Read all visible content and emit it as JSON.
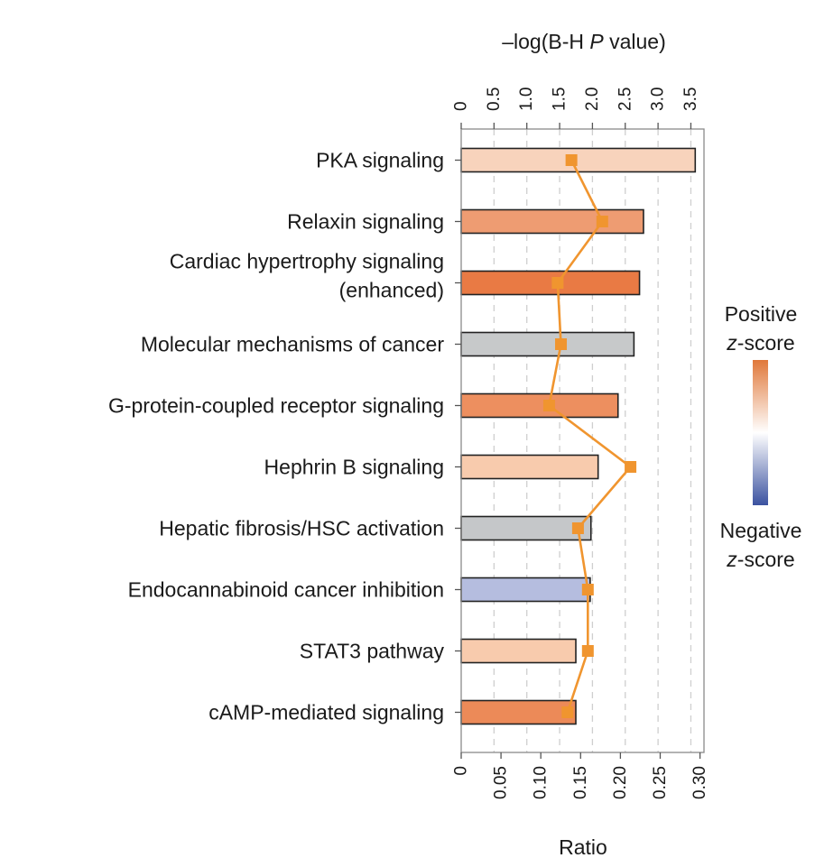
{
  "chart_data": {
    "type": "bar",
    "categories": [
      [
        "PKA signaling"
      ],
      [
        "Relaxin signaling"
      ],
      [
        "Cardiac hypertrophy signaling",
        "(enhanced)"
      ],
      [
        "Molecular mechanisms of cancer"
      ],
      [
        "G-protein-coupled receptor signaling"
      ],
      [
        "Hephrin B signaling"
      ],
      [
        "Hepatic fibrosis/HSC activation"
      ],
      [
        "Endocannabinoid cancer inhibition"
      ],
      [
        "STAT3 pathway"
      ],
      [
        "cAMP-mediated signaling"
      ]
    ],
    "series": [
      {
        "name": "Ratio",
        "axis": "bottom",
        "values": [
          0.294,
          0.229,
          0.224,
          0.217,
          0.197,
          0.172,
          0.163,
          0.162,
          0.144,
          0.144
        ],
        "colors": [
          "#f8d3bc",
          "#ee9c72",
          "#e97a44",
          "#c7c9ca",
          "#ed8f5f",
          "#f8cbad",
          "#c5c7c9",
          "#b5bddf",
          "#f8cbad",
          "#ec8a58"
        ]
      },
      {
        "name": "-log(B-H P value)",
        "axis": "top",
        "values": [
          1.68,
          2.15,
          1.47,
          1.52,
          1.34,
          2.58,
          1.78,
          1.93,
          1.93,
          1.62
        ],
        "color": "#f0952f"
      }
    ],
    "top_axis": {
      "label_prefix": "–log(B-H ",
      "label_italic": "P",
      "label_suffix": " value)",
      "ticks": [
        "0",
        "0.5",
        "1.0",
        "1.5",
        "2.0",
        "2.5",
        "3.0",
        "3.5"
      ],
      "tick_values": [
        0,
        0.5,
        1.0,
        1.5,
        2.0,
        2.5,
        3.0,
        3.5
      ],
      "range": [
        0,
        3.7
      ]
    },
    "bottom_axis": {
      "label": "Ratio",
      "ticks": [
        "0",
        "0.05",
        "0.10",
        "0.15",
        "0.20",
        "0.25",
        "0.30"
      ],
      "tick_values": [
        0,
        0.05,
        0.1,
        0.15,
        0.2,
        0.25,
        0.3
      ],
      "range": [
        0,
        0.305
      ]
    },
    "gridlines": "dashed-vertical",
    "legend": {
      "placement": "right",
      "top_label": "Positive",
      "bottom_label": "Negative",
      "score_italic": "z",
      "score_suffix": "-score",
      "gradient": [
        "#e0783a",
        "#ffffff",
        "#3b52a0"
      ]
    }
  }
}
